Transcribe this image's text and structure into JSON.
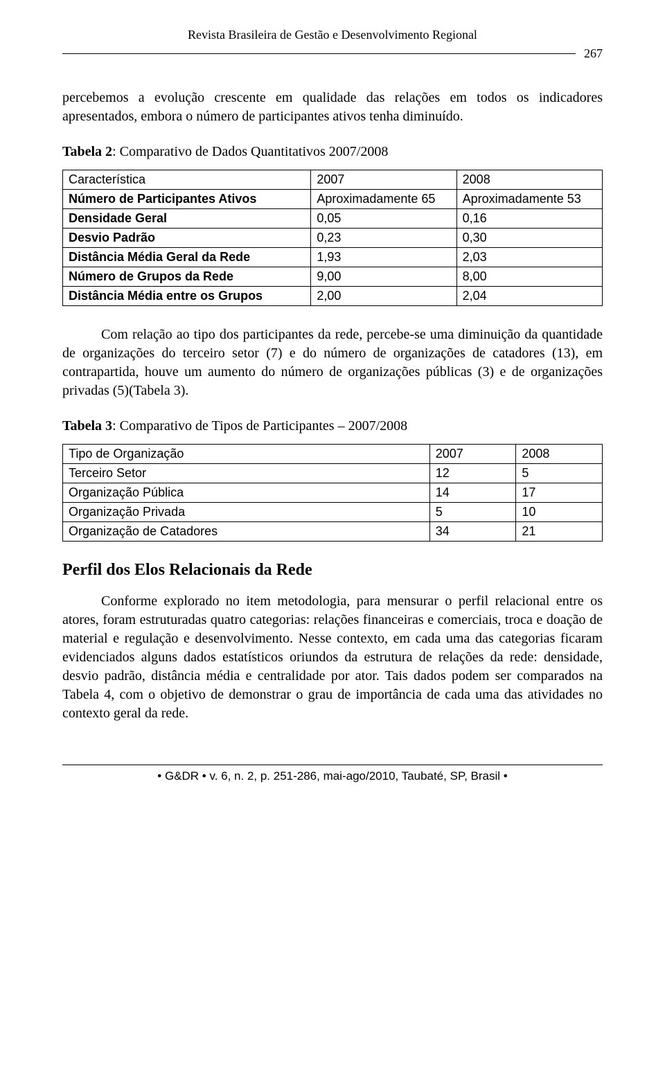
{
  "header": {
    "journal_title": "Revista Brasileira de Gestão e Desenvolvimento Regional",
    "page_number": "267"
  },
  "para_intro": "percebemos a evolução crescente em qualidade das relações em todos os indicadores apresentados, embora o número de participantes ativos tenha diminuído.",
  "table2": {
    "caption_bold": "Tabela 2",
    "caption_rest": ": Comparativo de Dados Quantitativos 2007/2008",
    "columns": [
      "Característica",
      "2007",
      "2008"
    ],
    "rows": [
      [
        "Número de Participantes Ativos",
        "Aproximadamente 65",
        "Aproximadamente 53"
      ],
      [
        "Densidade Geral",
        "0,05",
        "0,16"
      ],
      [
        "Desvio Padrão",
        "0,23",
        "0,30"
      ],
      [
        "Distância Média Geral da Rede",
        "1,93",
        "2,03"
      ],
      [
        "Número de Grupos da Rede",
        "9,00",
        "8,00"
      ],
      [
        "Distância Média entre os Grupos",
        "2,00",
        "2,04"
      ]
    ],
    "col_widths": [
      "46%",
      "27%",
      "27%"
    ]
  },
  "para_mid": "Com relação ao tipo dos participantes da rede, percebe-se uma diminuição da quantidade de organizações do terceiro setor (7) e do número de organizações de catadores (13), em contrapartida, houve um aumento do número de organizações públicas (3) e de organizações privadas (5)(Tabela 3).",
  "table3": {
    "caption_bold": "Tabela 3",
    "caption_rest": ": Comparativo de Tipos de Participantes – 2007/2008",
    "columns": [
      "Tipo de Organização",
      "2007",
      "2008"
    ],
    "rows": [
      [
        "Terceiro Setor",
        "12",
        "5"
      ],
      [
        "Organização Pública",
        "14",
        "17"
      ],
      [
        "Organização Privada",
        "5",
        "10"
      ],
      [
        "Organização de Catadores",
        "34",
        "21"
      ]
    ],
    "col_widths": [
      "68%",
      "16%",
      "16%"
    ]
  },
  "section_heading": "Perfil dos Elos Relacionais da Rede",
  "para_section": "Conforme explorado no item  metodologia, para mensurar o perfil relacional entre os atores, foram estruturadas quatro categorias: relações financeiras e comerciais,  troca e doação de material e regulação e desenvolvimento. Nesse contexto, em cada uma das categorias ficaram  evidenciados   alguns dados estatísticos oriundos da estrutura de relações da rede: densidade,  desvio padrão,  distância média e centralidade por ator. Tais dados podem ser comparados  na Tabela 4,  com o objetivo de demonstrar o grau de importância de cada uma das atividades no contexto geral da rede.",
  "footer": "• G&DR • v. 6, n. 2, p. 251-286, mai-ago/2010, Taubaté, SP, Brasil •"
}
